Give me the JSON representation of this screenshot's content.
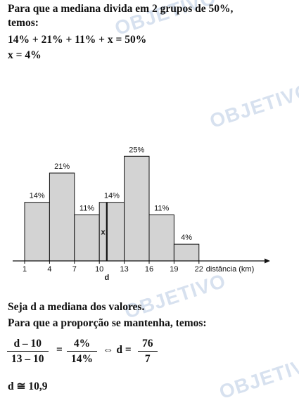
{
  "intro": {
    "line1": "Para que a mediana divida em 2 grupos de 50%,",
    "line2": "temos:",
    "equation": "14% + 21% + 11% + x = 50%",
    "result": "x = 4%"
  },
  "watermark_text": "OBJETIVO",
  "chart_data": {
    "type": "bar",
    "title": "",
    "xlabel": "distância (km)",
    "ylabel": "",
    "x_ticks": [
      1,
      4,
      7,
      10,
      13,
      16,
      19,
      22
    ],
    "bins": [
      {
        "from": 1,
        "to": 4,
        "value": 14,
        "label": "14%"
      },
      {
        "from": 4,
        "to": 7,
        "value": 21,
        "label": "21%"
      },
      {
        "from": 7,
        "to": 10,
        "value": 11,
        "label": "11%"
      },
      {
        "from": 10,
        "to": 13,
        "value": 14,
        "label": "14%"
      },
      {
        "from": 13,
        "to": 16,
        "value": 25,
        "label": "25%"
      },
      {
        "from": 16,
        "to": 19,
        "value": 11,
        "label": "11%"
      },
      {
        "from": 19,
        "to": 22,
        "value": 4,
        "label": "4%"
      }
    ],
    "median_marker": {
      "x": 10.9,
      "label": "d"
    },
    "x_region_label": "x",
    "colors": {
      "bar_fill": "#d3d3d3",
      "bar_stroke": "#111111"
    }
  },
  "conclusion": {
    "line1": "Seja d a mediana dos valores.",
    "line2": "Para que a proporção se mantenha, temos:",
    "frac1_num": "d – 10",
    "frac1_den": "13 – 10",
    "eq": "=",
    "frac2_num": "4%",
    "frac2_den": "14%",
    "implies": "⇔ d =",
    "frac3_num": "76",
    "frac3_den": "7",
    "final": "d ≅ 10,9"
  }
}
